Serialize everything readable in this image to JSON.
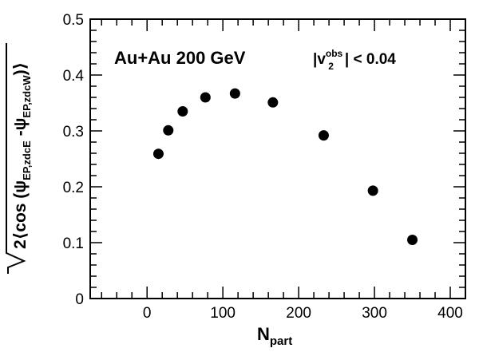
{
  "chart_data": {
    "type": "scatter",
    "title": "",
    "xlabel": {
      "main": "N",
      "sub": "part"
    },
    "ylabel": {
      "prefix": "2⟨cos (ψ",
      "sub1": "EP,zdcE",
      "mid": " -ψ",
      "sub2": "EP,zdcW",
      "suffix": ")⟩"
    },
    "xlim": [
      -75,
      420
    ],
    "ylim": [
      0,
      0.5
    ],
    "x_ticks": [
      0,
      100,
      200,
      300,
      400
    ],
    "x_tick_labels": [
      "0",
      "100",
      "200",
      "300",
      "400"
    ],
    "y_ticks": [
      0,
      0.1,
      0.2,
      0.3,
      0.4,
      0.5
    ],
    "y_tick_labels": [
      "0",
      "0.1",
      "0.2",
      "0.3",
      "0.4",
      "0.5"
    ],
    "grid": false,
    "series": [
      {
        "x": [
          15,
          28,
          47,
          77,
          116,
          166,
          233,
          298,
          350
        ],
        "y": [
          0.259,
          0.301,
          0.335,
          0.36,
          0.367,
          0.351,
          0.292,
          0.193,
          0.105
        ]
      }
    ],
    "annotations": {
      "system": "Au+Au 200 GeV",
      "cut": {
        "open": "|v",
        "sup": "obs",
        "sub": "2",
        "close": "| < 0.04"
      }
    },
    "colors": {
      "marker": "#000000",
      "axis": "#000000"
    }
  }
}
